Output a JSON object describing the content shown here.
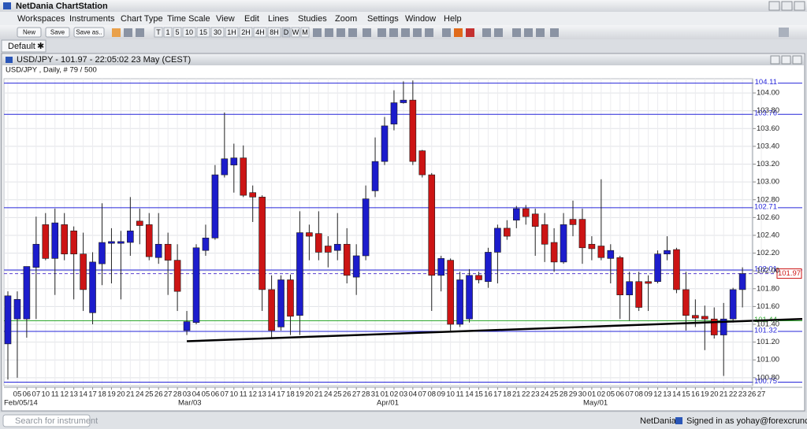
{
  "window": {
    "title": "NetDania ChartStation"
  },
  "menu": [
    "Workspaces",
    "Instruments",
    "Chart Type",
    "Time Scale",
    "View",
    "Edit",
    "Lines",
    "Studies",
    "Zoom",
    "Settings",
    "Window",
    "Help"
  ],
  "toolbar": {
    "buttons": [
      "New",
      "Save",
      "Save as.."
    ],
    "periods": [
      "T",
      "1",
      "5",
      "10",
      "15",
      "30",
      "1H",
      "2H",
      "4H",
      "8H",
      "D",
      "W",
      "M"
    ]
  },
  "tab": {
    "label": "Default"
  },
  "chart_window": {
    "title": "USD/JPY - 101.97 - 22:05:02  23 May (CEST)"
  },
  "month_labels": [
    "Feb/05/14",
    "Mar/03",
    "Apr/01",
    "May/01"
  ],
  "status": {
    "search": "Search for instrument",
    "brand": "NetDania",
    "signed_in": "Signed in as yohay@forexcrunch.com"
  },
  "chart_data": {
    "type": "candlestick",
    "title": "USD/JPY , Daily, # 79 / 500",
    "categories": [
      null,
      "05",
      "06",
      "07",
      "10",
      "11",
      "12",
      "13",
      "14",
      "17",
      "18",
      "19",
      "20",
      "21",
      "24",
      "25",
      "26",
      "27",
      "28",
      "03",
      "04",
      "05",
      "06",
      "07",
      "10",
      "11",
      "12",
      "13",
      "14",
      "17",
      "18",
      "19",
      "20",
      "21",
      "24",
      "25",
      "26",
      "27",
      "28",
      "31",
      "01",
      "02",
      "03",
      "04",
      "07",
      "08",
      "09",
      "10",
      "11",
      "14",
      "15",
      "16",
      "17",
      "18",
      "21",
      "22",
      "23",
      "24",
      "25",
      "28",
      "29",
      "30",
      "01",
      "02",
      "05",
      "06",
      "07",
      "08",
      "09",
      "12",
      "13",
      "14",
      "15",
      "16",
      "19",
      "20",
      "21",
      "22",
      "23",
      "26",
      "27"
    ],
    "open": [
      101.18,
      101.46,
      101.46,
      102.04,
      102.52,
      102.14,
      102.52,
      102.45,
      102.19,
      101.53,
      102.08,
      102.31,
      102.31,
      102.32,
      102.56,
      102.52,
      102.15,
      102.3,
      102.12,
      101.33,
      101.42,
      102.23,
      102.37,
      103.08,
      103.19,
      103.27,
      102.88,
      102.83,
      101.79,
      101.37,
      101.9,
      101.5,
      102.43,
      102.42,
      102.28,
      102.23,
      102.3,
      101.93,
      102.17,
      102.9,
      103.23,
      103.65,
      103.89,
      103.92,
      103.35,
      103.08,
      101.95,
      102.12,
      101.4,
      101.46,
      101.95,
      101.88,
      102.21,
      102.48,
      102.57,
      102.7,
      102.64,
      102.52,
      102.32,
      102.1,
      102.58,
      102.58,
      102.3,
      102.28,
      102.14,
      102.15,
      101.73,
      101.88,
      101.88,
      101.88,
      102.19,
      102.24,
      101.79,
      101.5,
      101.49,
      101.46,
      101.28,
      101.46,
      101.79,
      null,
      null
    ],
    "high": [
      101.77,
      101.77,
      102.05,
      102.61,
      102.65,
      102.7,
      102.65,
      102.5,
      102.43,
      102.21,
      102.76,
      102.48,
      102.45,
      102.83,
      102.7,
      102.65,
      102.65,
      102.43,
      102.3,
      101.55,
      102.3,
      102.52,
      103.19,
      103.78,
      103.43,
      103.41,
      102.96,
      102.85,
      101.95,
      101.95,
      101.96,
      102.67,
      102.52,
      102.67,
      102.39,
      102.65,
      102.48,
      102.3,
      102.96,
      103.5,
      103.73,
      104.03,
      104.13,
      104.14,
      103.36,
      103.1,
      102.17,
      102.14,
      101.99,
      102.02,
      101.99,
      102.26,
      102.52,
      102.57,
      102.73,
      102.74,
      102.7,
      102.65,
      102.48,
      102.65,
      102.79,
      102.7,
      102.39,
      103.03,
      102.3,
      102.17,
      101.99,
      101.99,
      101.95,
      102.23,
      102.39,
      102.26,
      101.99,
      101.68,
      101.61,
      101.59,
      101.64,
      101.81,
      102.04,
      null,
      null
    ],
    "low": [
      100.78,
      100.8,
      101.25,
      101.46,
      102.12,
      101.73,
      102.12,
      101.68,
      101.55,
      101.4,
      101.84,
      101.86,
      101.68,
      102.17,
      102.3,
      102.12,
      102.08,
      101.73,
      101.55,
      101.28,
      101.4,
      102.17,
      102.35,
      103.05,
      102.88,
      102.83,
      102.55,
      101.55,
      101.24,
      101.33,
      101.28,
      101.28,
      102.12,
      102.12,
      102.04,
      102.12,
      101.86,
      101.73,
      102.12,
      102.83,
      103.19,
      103.58,
      103.88,
      103.19,
      103.05,
      101.55,
      101.77,
      101.33,
      101.37,
      101.42,
      101.86,
      101.81,
      101.86,
      102.35,
      102.48,
      102.52,
      102.17,
      102.1,
      101.99,
      102.08,
      102.39,
      102.08,
      102.12,
      102.12,
      101.86,
      101.46,
      101.44,
      101.55,
      101.55,
      101.86,
      102.12,
      101.75,
      101.33,
      101.37,
      101.11,
      101.24,
      100.82,
      101.42,
      101.59,
      null,
      null
    ],
    "close": [
      101.72,
      101.68,
      102.05,
      102.3,
      102.14,
      102.54,
      102.19,
      102.19,
      101.79,
      102.1,
      102.32,
      102.33,
      102.33,
      102.45,
      102.51,
      102.16,
      102.3,
      102.12,
      101.77,
      101.43,
      102.26,
      102.37,
      103.08,
      103.26,
      103.27,
      102.85,
      102.83,
      101.79,
      101.33,
      101.9,
      101.49,
      102.43,
      102.39,
      102.21,
      102.21,
      102.3,
      101.95,
      102.17,
      102.81,
      103.23,
      103.63,
      103.89,
      103.92,
      103.23,
      103.08,
      101.95,
      102.14,
      101.4,
      101.9,
      101.95,
      101.9,
      102.21,
      102.48,
      102.39,
      102.7,
      102.61,
      102.5,
      102.3,
      102.1,
      102.52,
      102.52,
      102.26,
      102.25,
      102.15,
      102.23,
      101.73,
      101.88,
      101.59,
      101.86,
      102.19,
      102.23,
      101.79,
      101.5,
      101.47,
      101.46,
      101.28,
      101.46,
      101.79,
      101.97,
      null,
      null
    ],
    "up_color": "#1c1ccc",
    "down_color": "#cc1414",
    "ylim": [
      100.71,
      104.16
    ],
    "yticks": [
      {
        "value": 100.8,
        "label": "100.80"
      },
      {
        "value": 101,
        "label": "101.00"
      },
      {
        "value": 101.2,
        "label": "101.20"
      },
      {
        "value": 101.4,
        "label": "101.40"
      },
      {
        "value": 101.6,
        "label": "101.60"
      },
      {
        "value": 101.8,
        "label": "101.80"
      },
      {
        "value": 102,
        "label": "102.00"
      },
      {
        "value": 102.2,
        "label": "102.20"
      },
      {
        "value": 102.4,
        "label": "102.40"
      },
      {
        "value": 102.6,
        "label": "102.60"
      },
      {
        "value": 102.8,
        "label": "102.80"
      },
      {
        "value": 103,
        "label": "103.00"
      },
      {
        "value": 103.2,
        "label": "103.20"
      },
      {
        "value": 103.4,
        "label": "103.40"
      },
      {
        "value": 103.6,
        "label": "103.60"
      },
      {
        "value": 103.8,
        "label": "103.80"
      },
      {
        "value": 104,
        "label": "104.00"
      }
    ],
    "grid": true,
    "levels": [
      {
        "value": 104.11,
        "color": "#2626d9"
      },
      {
        "value": 103.76,
        "color": "#2626d9"
      },
      {
        "value": 102.71,
        "color": "#2626d9"
      },
      {
        "value": 102.01,
        "color": "#2626d9"
      },
      {
        "value": 101.32,
        "color": "#2626d9"
      },
      {
        "value": 100.75,
        "color": "#2626d9"
      },
      {
        "value": 101.44,
        "color": "#2fa82f"
      }
    ],
    "last_price": {
      "value": 101.97,
      "color": "#cc1414",
      "line_color": "#5a3fcf"
    },
    "trendline": {
      "values": [
        101.21,
        101.46
      ],
      "color": "#000000"
    }
  }
}
